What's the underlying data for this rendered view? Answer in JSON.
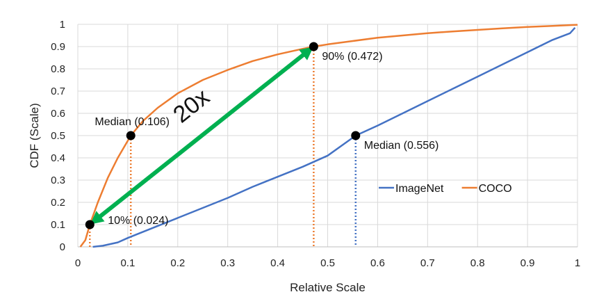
{
  "chart_data": {
    "type": "line",
    "xlabel": "Relative Scale",
    "ylabel": "CDF (Scale)",
    "xlim": [
      0,
      1
    ],
    "ylim": [
      0,
      1
    ],
    "x_ticks": [
      "0",
      "0.1",
      "0.2",
      "0.3",
      "0.4",
      "0.5",
      "0.6",
      "0.7",
      "0.8",
      "0.9",
      "1"
    ],
    "y_ticks": [
      "0",
      "0.1",
      "0.2",
      "0.3",
      "0.4",
      "0.5",
      "0.6",
      "0.7",
      "0.8",
      "0.9",
      "1"
    ],
    "grid": {
      "x": true,
      "y": true
    },
    "legend_position": "right-middle",
    "series": [
      {
        "name": "ImageNet",
        "color": "#4472c4",
        "points": [
          [
            0.03,
            0
          ],
          [
            0.05,
            0.005
          ],
          [
            0.08,
            0.02
          ],
          [
            0.1,
            0.04
          ],
          [
            0.15,
            0.085
          ],
          [
            0.2,
            0.13
          ],
          [
            0.25,
            0.175
          ],
          [
            0.3,
            0.22
          ],
          [
            0.35,
            0.27
          ],
          [
            0.4,
            0.315
          ],
          [
            0.45,
            0.36
          ],
          [
            0.5,
            0.41
          ],
          [
            0.556,
            0.5
          ],
          [
            0.6,
            0.545
          ],
          [
            0.65,
            0.6
          ],
          [
            0.7,
            0.655
          ],
          [
            0.75,
            0.71
          ],
          [
            0.8,
            0.765
          ],
          [
            0.85,
            0.82
          ],
          [
            0.9,
            0.875
          ],
          [
            0.95,
            0.93
          ],
          [
            0.985,
            0.96
          ],
          [
            0.995,
            0.985
          ]
        ]
      },
      {
        "name": "COCO",
        "color": "#ed7d31",
        "points": [
          [
            0.005,
            0
          ],
          [
            0.015,
            0.03
          ],
          [
            0.024,
            0.1
          ],
          [
            0.04,
            0.2
          ],
          [
            0.06,
            0.31
          ],
          [
            0.08,
            0.4
          ],
          [
            0.106,
            0.5
          ],
          [
            0.13,
            0.565
          ],
          [
            0.16,
            0.625
          ],
          [
            0.2,
            0.69
          ],
          [
            0.25,
            0.75
          ],
          [
            0.3,
            0.795
          ],
          [
            0.35,
            0.835
          ],
          [
            0.4,
            0.865
          ],
          [
            0.45,
            0.89
          ],
          [
            0.472,
            0.9
          ],
          [
            0.5,
            0.91
          ],
          [
            0.55,
            0.925
          ],
          [
            0.6,
            0.94
          ],
          [
            0.65,
            0.95
          ],
          [
            0.7,
            0.96
          ],
          [
            0.75,
            0.968
          ],
          [
            0.8,
            0.975
          ],
          [
            0.85,
            0.982
          ],
          [
            0.9,
            0.988
          ],
          [
            0.95,
            0.993
          ],
          [
            1,
            0.998
          ]
        ]
      }
    ],
    "markers": [
      {
        "name": "coco-median",
        "x": 0.106,
        "y": 0.5,
        "label": "Median (0.106)",
        "drop_color": "#ed7d31",
        "label_side": "above-left"
      },
      {
        "name": "coco-10pct",
        "x": 0.024,
        "y": 0.1,
        "label": "10% (0.024)",
        "drop_color": "#ed7d31",
        "label_side": "right"
      },
      {
        "name": "coco-90pct",
        "x": 0.472,
        "y": 0.9,
        "label": "90% (0.472)",
        "drop_color": "#ed7d31",
        "label_side": "below-right"
      },
      {
        "name": "imagenet-median",
        "x": 0.556,
        "y": 0.5,
        "label": "Median (0.556)",
        "drop_color": "#4472c4",
        "label_side": "below-right"
      }
    ],
    "arrow": {
      "from": [
        0.024,
        0.1
      ],
      "to": [
        0.472,
        0.9
      ],
      "color": "#00b050",
      "label": "20x"
    }
  }
}
